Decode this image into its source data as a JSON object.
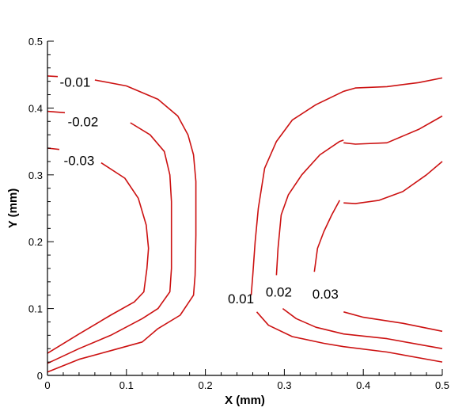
{
  "chart_data": {
    "type": "line",
    "title": "",
    "xlabel": "X (mm)",
    "ylabel": "Y (mm)",
    "xlim": [
      0,
      0.5
    ],
    "ylim": [
      0,
      0.5
    ],
    "xticks": [
      "0",
      "0.1",
      "0.2",
      "0.3",
      "0.4",
      "0.5"
    ],
    "yticks": [
      "0",
      "0.1",
      "0.2",
      "0.3",
      "0.4",
      "0.5"
    ],
    "line_color": "#cc1111",
    "grid": false,
    "series": [
      {
        "level": "-0.01",
        "segments": [
          [
            [
              0.0,
              0.448
            ],
            [
              0.013,
              0.447
            ]
          ],
          [
            [
              0.06,
              0.442
            ],
            [
              0.1,
              0.433
            ],
            [
              0.14,
              0.413
            ],
            [
              0.165,
              0.388
            ],
            [
              0.178,
              0.36
            ],
            [
              0.185,
              0.33
            ],
            [
              0.188,
              0.29
            ],
            [
              0.188,
              0.25
            ],
            [
              0.188,
              0.21
            ],
            [
              0.187,
              0.15
            ],
            [
              0.185,
              0.12
            ],
            [
              0.168,
              0.09
            ],
            [
              0.14,
              0.07
            ],
            [
              0.12,
              0.05
            ],
            [
              0.08,
              0.037
            ],
            [
              0.04,
              0.024
            ],
            [
              0.0,
              0.005
            ]
          ]
        ]
      },
      {
        "level": "-0.02",
        "segments": [
          [
            [
              0.0,
              0.395
            ],
            [
              0.022,
              0.393
            ]
          ],
          [
            [
              0.105,
              0.378
            ],
            [
              0.13,
              0.36
            ],
            [
              0.148,
              0.335
            ],
            [
              0.155,
              0.3
            ],
            [
              0.157,
              0.26
            ],
            [
              0.157,
              0.21
            ],
            [
              0.157,
              0.16
            ],
            [
              0.155,
              0.125
            ],
            [
              0.14,
              0.1
            ],
            [
              0.12,
              0.085
            ],
            [
              0.08,
              0.06
            ],
            [
              0.04,
              0.04
            ],
            [
              0.0,
              0.018
            ]
          ]
        ]
      },
      {
        "level": "-0.03",
        "segments": [
          [
            [
              0.0,
              0.34
            ],
            [
              0.015,
              0.338
            ]
          ],
          [
            [
              0.068,
              0.318
            ],
            [
              0.098,
              0.295
            ],
            [
              0.115,
              0.265
            ],
            [
              0.125,
              0.225
            ],
            [
              0.128,
              0.19
            ],
            [
              0.126,
              0.16
            ],
            [
              0.122,
              0.125
            ],
            [
              0.11,
              0.11
            ],
            [
              0.08,
              0.09
            ],
            [
              0.04,
              0.062
            ],
            [
              0.0,
              0.033
            ]
          ]
        ]
      },
      {
        "level": "0.01",
        "segments": [
          [
            [
              0.258,
              0.12
            ],
            [
              0.26,
              0.15
            ],
            [
              0.263,
              0.2
            ],
            [
              0.267,
              0.25
            ],
            [
              0.275,
              0.31
            ],
            [
              0.29,
              0.35
            ],
            [
              0.31,
              0.382
            ],
            [
              0.34,
              0.405
            ],
            [
              0.375,
              0.425
            ]
          ],
          [
            [
              0.375,
              0.425
            ],
            [
              0.39,
              0.43
            ],
            [
              0.43,
              0.432
            ],
            [
              0.47,
              0.438
            ],
            [
              0.5,
              0.445
            ]
          ],
          [
            [
              0.265,
              0.095
            ],
            [
              0.28,
              0.075
            ],
            [
              0.31,
              0.058
            ],
            [
              0.35,
              0.048
            ],
            [
              0.375,
              0.043
            ],
            [
              0.43,
              0.035
            ],
            [
              0.5,
              0.02
            ]
          ]
        ]
      },
      {
        "level": "0.02",
        "segments": [
          [
            [
              0.29,
              0.15
            ],
            [
              0.292,
              0.19
            ],
            [
              0.296,
              0.24
            ],
            [
              0.305,
              0.27
            ],
            [
              0.322,
              0.3
            ],
            [
              0.345,
              0.33
            ],
            [
              0.37,
              0.35
            ],
            [
              0.375,
              0.352
            ]
          ],
          [
            [
              0.375,
              0.348
            ],
            [
              0.39,
              0.346
            ],
            [
              0.43,
              0.348
            ],
            [
              0.47,
              0.368
            ],
            [
              0.5,
              0.388
            ]
          ],
          [
            [
              0.298,
              0.1
            ],
            [
              0.315,
              0.085
            ],
            [
              0.34,
              0.072
            ],
            [
              0.375,
              0.062
            ],
            [
              0.43,
              0.055
            ],
            [
              0.5,
              0.04
            ]
          ]
        ]
      },
      {
        "level": "0.03",
        "segments": [
          [
            [
              0.338,
              0.155
            ],
            [
              0.342,
              0.19
            ],
            [
              0.35,
              0.215
            ],
            [
              0.36,
              0.24
            ],
            [
              0.37,
              0.262
            ]
          ],
          [
            [
              0.375,
              0.258
            ],
            [
              0.39,
              0.257
            ],
            [
              0.42,
              0.262
            ],
            [
              0.45,
              0.275
            ],
            [
              0.48,
              0.3
            ],
            [
              0.5,
              0.32
            ]
          ],
          [
            [
              0.375,
              0.095
            ],
            [
              0.4,
              0.087
            ],
            [
              0.45,
              0.078
            ],
            [
              0.5,
              0.066
            ]
          ]
        ]
      }
    ],
    "labels": [
      {
        "text": "-0.01",
        "x": 0.035,
        "y": 0.437
      },
      {
        "text": "-0.02",
        "x": 0.045,
        "y": 0.378
      },
      {
        "text": "-0.03",
        "x": 0.04,
        "y": 0.32
      },
      {
        "text": "0.01",
        "x": 0.245,
        "y": 0.113
      },
      {
        "text": "0.02",
        "x": 0.293,
        "y": 0.123
      },
      {
        "text": "0.03",
        "x": 0.352,
        "y": 0.12
      }
    ]
  }
}
